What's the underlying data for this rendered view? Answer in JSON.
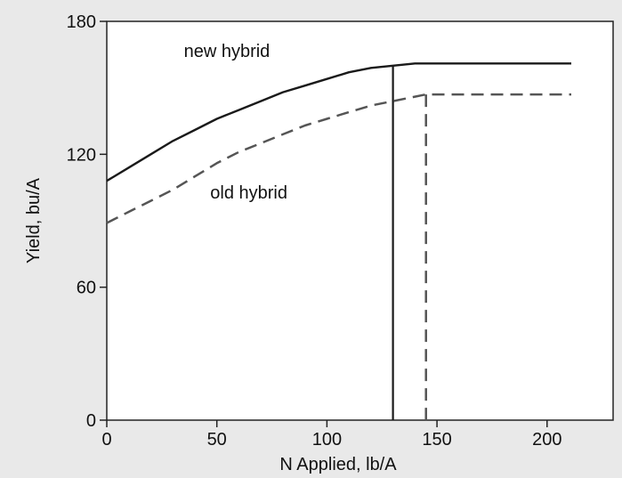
{
  "chart_data": {
    "type": "line",
    "xlabel": "N Applied, lb/A",
    "ylabel": "Yield, bu/A",
    "xlim": [
      0,
      230
    ],
    "ylim": [
      0,
      180
    ],
    "xticks": [
      0,
      50,
      100,
      150,
      200
    ],
    "yticks": [
      0,
      60,
      120,
      180
    ],
    "grid": false,
    "series": [
      {
        "name": "new hybrid",
        "style": "solid",
        "color": "#1a1a1a",
        "x": [
          0,
          10,
          20,
          30,
          40,
          50,
          60,
          70,
          80,
          90,
          100,
          110,
          120,
          130,
          140,
          150,
          160,
          170,
          180,
          190,
          200,
          211
        ],
        "y": [
          108,
          114,
          120,
          126,
          131,
          136,
          140,
          144,
          148,
          151,
          154,
          157,
          159,
          160,
          161,
          161,
          161,
          161,
          161,
          161,
          161,
          161
        ]
      },
      {
        "name": "old hybrid",
        "style": "dashed",
        "color": "#555555",
        "x": [
          0,
          10,
          20,
          30,
          40,
          50,
          60,
          70,
          80,
          90,
          100,
          110,
          120,
          130,
          140,
          145,
          150,
          160,
          170,
          180,
          190,
          200,
          211
        ],
        "y": [
          89,
          94,
          99,
          104,
          110,
          116,
          121,
          125,
          129,
          133,
          136,
          139,
          142,
          144,
          146,
          147,
          147,
          147,
          147,
          147,
          147,
          147,
          147
        ]
      }
    ],
    "vertical_markers": [
      {
        "series": "new hybrid",
        "x": 130,
        "style": "solid",
        "color": "#1a1a1a"
      },
      {
        "series": "old hybrid",
        "x": 145,
        "style": "dashed",
        "color": "#555555"
      }
    ],
    "annotations": [
      {
        "text": "new hybrid",
        "x": 35,
        "y": 164
      },
      {
        "text": "old hybrid",
        "x": 47,
        "y": 100
      }
    ]
  }
}
